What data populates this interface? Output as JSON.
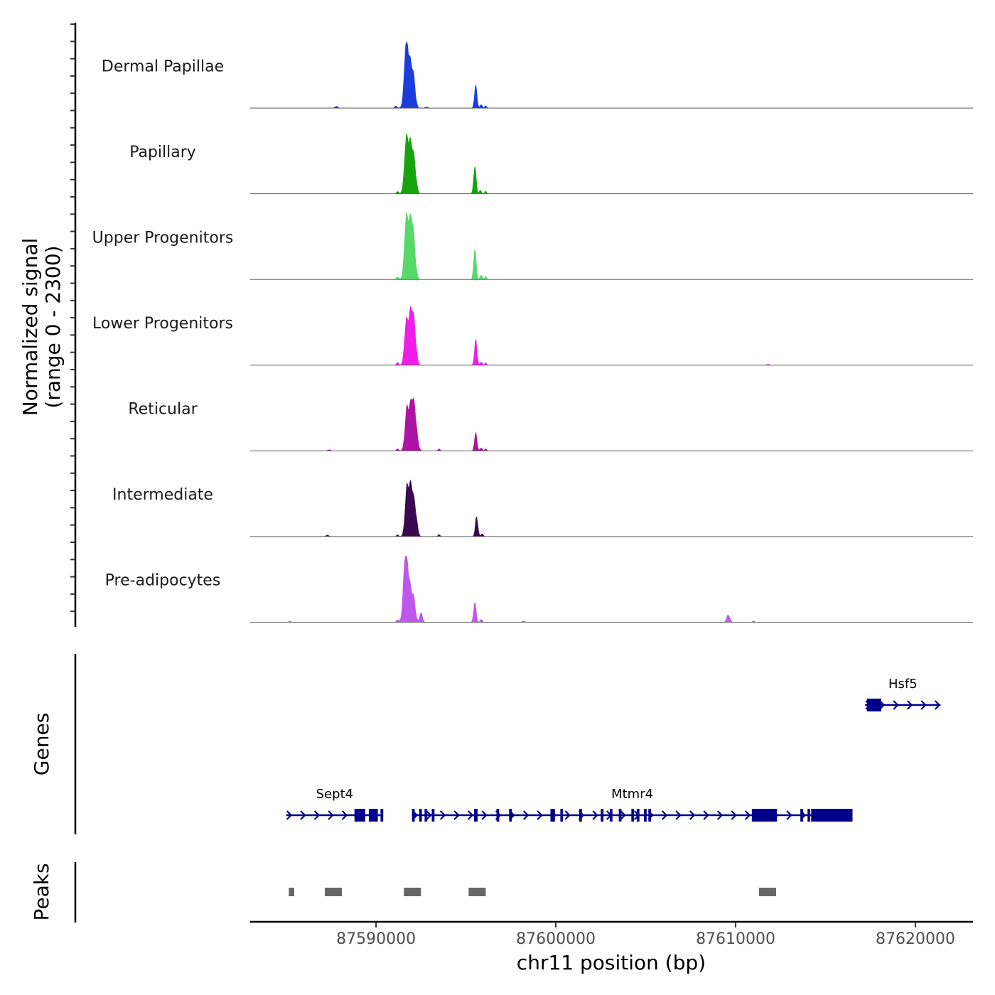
{
  "chart_data": {
    "type": "area",
    "title": "",
    "chromosome": "chr11",
    "xlabel": "chr11 position (bp)",
    "xlim": [
      87583000,
      87623200
    ],
    "x_ticks": [
      87590000,
      87600000,
      87610000,
      87620000
    ],
    "x_tick_labels": [
      "87590000",
      "87600000",
      "87610000",
      "87620000"
    ],
    "ylabel_line1": "Normalized signal",
    "ylabel_line2": "(range 0 - 2300)",
    "ylim": [
      0,
      2300
    ],
    "grid": false,
    "legend": "none",
    "tracks": [
      {
        "name": "Dermal Papillae",
        "color": "#1a3ddb",
        "peaks": [
          [
            87591800,
            2100,
            160
          ],
          [
            87591650,
            800,
            80
          ],
          [
            87592100,
            700,
            100
          ],
          [
            87595550,
            750,
            70
          ],
          [
            87595850,
            120,
            60
          ],
          [
            87596100,
            90,
            50
          ],
          [
            87587800,
            60,
            80
          ],
          [
            87591100,
            70,
            60
          ],
          [
            87592800,
            40,
            80
          ]
        ]
      },
      {
        "name": "Papillary",
        "color": "#17a30d",
        "peaks": [
          [
            87591850,
            2050,
            170
          ],
          [
            87591650,
            700,
            80
          ],
          [
            87592150,
            650,
            100
          ],
          [
            87595500,
            900,
            70
          ],
          [
            87595800,
            130,
            60
          ],
          [
            87596100,
            100,
            50
          ],
          [
            87591200,
            80,
            60
          ]
        ]
      },
      {
        "name": "Upper Progenitors",
        "color": "#57d968",
        "peaks": [
          [
            87591850,
            2300,
            170
          ],
          [
            87591650,
            800,
            80
          ],
          [
            87592100,
            700,
            110
          ],
          [
            87595500,
            1000,
            70
          ],
          [
            87595850,
            150,
            60
          ],
          [
            87596100,
            110,
            50
          ],
          [
            87591200,
            90,
            60
          ]
        ]
      },
      {
        "name": "Lower Progenitors",
        "color": "#f01ee6",
        "peaks": [
          [
            87591900,
            2000,
            170
          ],
          [
            87591650,
            700,
            80
          ],
          [
            87592150,
            650,
            100
          ],
          [
            87595550,
            850,
            70
          ],
          [
            87595850,
            110,
            60
          ],
          [
            87596100,
            90,
            50
          ],
          [
            87591200,
            90,
            60
          ],
          [
            87611800,
            30,
            80
          ]
        ]
      },
      {
        "name": "Reticular",
        "color": "#ad14a3",
        "peaks": [
          [
            87591950,
            1750,
            180
          ],
          [
            87591700,
            800,
            90
          ],
          [
            87592200,
            600,
            100
          ],
          [
            87595550,
            600,
            70
          ],
          [
            87595850,
            100,
            60
          ],
          [
            87596100,
            80,
            50
          ],
          [
            87593500,
            60,
            60
          ],
          [
            87587400,
            40,
            80
          ],
          [
            87591200,
            70,
            60
          ]
        ]
      },
      {
        "name": "Intermediate",
        "color": "#38094f",
        "peaks": [
          [
            87591900,
            1900,
            160
          ],
          [
            87591700,
            800,
            90
          ],
          [
            87592200,
            650,
            100
          ],
          [
            87595600,
            700,
            70
          ],
          [
            87595900,
            90,
            60
          ],
          [
            87593500,
            60,
            60
          ],
          [
            87587300,
            50,
            80
          ],
          [
            87591200,
            60,
            60
          ]
        ]
      },
      {
        "name": "Pre-adipocytes",
        "color": "#bf57ed",
        "peaks": [
          [
            87591750,
            2050,
            160
          ],
          [
            87591600,
            800,
            90
          ],
          [
            87592100,
            650,
            100
          ],
          [
            87592500,
            300,
            80
          ],
          [
            87595500,
            650,
            70
          ],
          [
            87595850,
            100,
            60
          ],
          [
            87609600,
            250,
            90
          ],
          [
            87585200,
            40,
            60
          ],
          [
            87591200,
            80,
            60
          ],
          [
            87598200,
            40,
            80
          ],
          [
            87611000,
            40,
            60
          ]
        ]
      }
    ],
    "genes_track_label": "Genes",
    "genes": [
      {
        "name": "Sept4",
        "start": 87585000,
        "end": 87590400,
        "strand": "+",
        "row": "lower",
        "exons": [
          [
            87588800,
            87589400
          ],
          [
            87589600,
            87590100
          ],
          [
            87590250,
            87590400
          ]
        ]
      },
      {
        "name": "Mtmr4",
        "start": 87592000,
        "end": 87616500,
        "strand": "+",
        "row": "lower",
        "exons": [
          [
            87592000,
            87592150
          ],
          [
            87592400,
            87592550
          ],
          [
            87592700,
            87592850
          ],
          [
            87593100,
            87593250
          ],
          [
            87595450,
            87595650
          ],
          [
            87596700,
            87596850
          ],
          [
            87597400,
            87597550
          ],
          [
            87599700,
            87599950
          ],
          [
            87600250,
            87600400
          ],
          [
            87601300,
            87601450
          ],
          [
            87602500,
            87602650
          ],
          [
            87603000,
            87603150
          ],
          [
            87603500,
            87603650
          ],
          [
            87604200,
            87604350
          ],
          [
            87604500,
            87604650
          ],
          [
            87604900,
            87605050
          ],
          [
            87605150,
            87605300
          ],
          [
            87610900,
            87612300
          ],
          [
            87613600,
            87613750
          ],
          [
            87614000,
            87614150
          ],
          [
            87614200,
            87616500
          ]
        ]
      },
      {
        "name": "Hsf5",
        "start": 87617200,
        "end": 87621400,
        "strand": "+",
        "row": "upper",
        "exons": [
          [
            87617300,
            87618100
          ]
        ]
      }
    ],
    "peaks_track_label": "Peaks",
    "peak_regions": [
      [
        87585150,
        87585450
      ],
      [
        87587150,
        87588100
      ],
      [
        87591550,
        87592500
      ],
      [
        87595150,
        87596100
      ],
      [
        87611300,
        87612250
      ]
    ]
  }
}
